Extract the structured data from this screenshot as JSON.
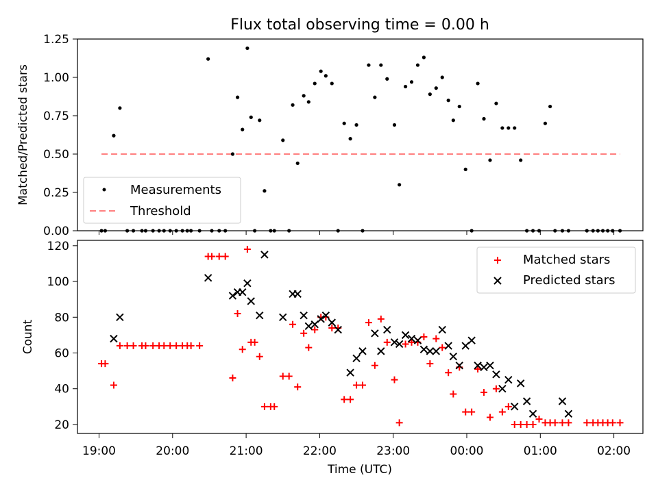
{
  "title": "Flux total observing time = 0.00 h",
  "chart_data": [
    {
      "type": "scatter",
      "ylabel": "Matched/Predicted stars",
      "xlabel": "",
      "ylim": [
        0,
        1.25
      ],
      "yticks": [
        "0.00",
        "0.25",
        "0.50",
        "0.75",
        "1.00",
        "1.25"
      ],
      "grid": false,
      "legend_position": "lower-left",
      "series": [
        {
          "name": "Measurements",
          "marker": "dot",
          "color": "#000000",
          "x": [
            "19:02",
            "19:05",
            "19:12",
            "19:17",
            "19:23",
            "19:28",
            "19:35",
            "19:38",
            "19:44",
            "19:49",
            "19:53",
            "19:58",
            "20:03",
            "20:08",
            "20:12",
            "20:15",
            "20:22",
            "20:29",
            "20:32",
            "20:38",
            "20:43",
            "20:49",
            "20:53",
            "20:57",
            "21:01",
            "21:04",
            "21:07",
            "21:11",
            "21:15",
            "21:20",
            "21:23",
            "21:30",
            "21:35",
            "21:38",
            "21:42",
            "21:47",
            "21:51",
            "21:56",
            "22:01",
            "22:05",
            "22:10",
            "22:15",
            "22:20",
            "22:25",
            "22:30",
            "22:35",
            "22:40",
            "22:45",
            "22:50",
            "22:55",
            "23:01",
            "23:05",
            "23:10",
            "23:15",
            "23:20",
            "23:25",
            "23:30",
            "23:35",
            "23:40",
            "23:45",
            "23:49",
            "23:54",
            "23:59",
            "00:04",
            "00:09",
            "00:14",
            "00:19",
            "00:24",
            "00:29",
            "00:34",
            "00:39",
            "00:44",
            "00:49",
            "00:54",
            "00:59",
            "01:04",
            "01:08",
            "01:12",
            "01:18",
            "01:23",
            "01:38",
            "01:43",
            "01:47",
            "01:51",
            "01:55",
            "01:59",
            "02:05"
          ],
          "y": [
            0,
            0,
            0.62,
            0.8,
            0,
            0,
            0,
            0,
            0,
            0,
            0,
            0,
            0,
            0,
            0,
            0,
            0,
            1.12,
            0,
            0,
            0,
            0.5,
            0.87,
            0.66,
            1.19,
            0.74,
            0,
            0.72,
            0.26,
            0,
            0,
            0.59,
            0,
            0.82,
            0.44,
            0.88,
            0.84,
            0.96,
            1.04,
            1.01,
            0.96,
            0,
            0.7,
            0.6,
            0.69,
            0,
            1.08,
            0.87,
            1.08,
            0.99,
            0.69,
            0.3,
            0.94,
            0.97,
            1.08,
            1.13,
            0.89,
            0.93,
            1.0,
            0.85,
            0.72,
            0.81,
            0.4,
            0,
            0.96,
            0.73,
            0.46,
            0.83,
            0.67,
            0.67,
            0.67,
            0.46,
            0,
            0,
            0,
            0.7,
            0.81,
            0,
            0,
            0,
            0,
            0,
            0,
            0,
            0,
            0,
            0
          ]
        },
        {
          "name": "Threshold",
          "style": "dashed",
          "color": "#ff7f7f",
          "x": [
            "19:02",
            "02:05"
          ],
          "y": [
            0.5,
            0.5
          ]
        }
      ]
    },
    {
      "type": "scatter",
      "ylabel": "Count",
      "xlabel": "Time (UTC)",
      "ylim": [
        15,
        123
      ],
      "yticks": [
        "20",
        "40",
        "60",
        "80",
        "100",
        "120"
      ],
      "xticks": [
        "19:00",
        "20:00",
        "21:00",
        "22:00",
        "23:00",
        "00:00",
        "01:00",
        "02:00"
      ],
      "xlim": [
        "18:58",
        "02:24"
      ],
      "grid": false,
      "legend_position": "upper-right",
      "series": [
        {
          "name": "Matched stars",
          "marker": "plus",
          "color": "#ff0000",
          "x": [
            "19:02",
            "19:05",
            "19:12",
            "19:17",
            "19:23",
            "19:28",
            "19:35",
            "19:38",
            "19:44",
            "19:49",
            "19:53",
            "19:58",
            "20:03",
            "20:08",
            "20:12",
            "20:15",
            "20:22",
            "20:29",
            "20:32",
            "20:38",
            "20:43",
            "20:49",
            "20:53",
            "20:57",
            "21:01",
            "21:04",
            "21:07",
            "21:11",
            "21:15",
            "21:20",
            "21:23",
            "21:30",
            "21:35",
            "21:38",
            "21:42",
            "21:47",
            "21:51",
            "21:56",
            "22:01",
            "22:05",
            "22:10",
            "22:15",
            "22:20",
            "22:25",
            "22:30",
            "22:35",
            "22:40",
            "22:45",
            "22:50",
            "22:55",
            "23:01",
            "23:05",
            "23:10",
            "23:15",
            "23:20",
            "23:25",
            "23:30",
            "23:35",
            "23:40",
            "23:45",
            "23:49",
            "23:54",
            "23:59",
            "00:04",
            "00:09",
            "00:14",
            "00:19",
            "00:24",
            "00:29",
            "00:34",
            "00:39",
            "00:44",
            "00:49",
            "00:54",
            "00:59",
            "01:04",
            "01:08",
            "01:12",
            "01:18",
            "01:23",
            "01:38",
            "01:43",
            "01:47",
            "01:51",
            "01:55",
            "01:59",
            "02:05"
          ],
          "y": [
            54,
            54,
            42,
            64,
            64,
            64,
            64,
            64,
            64,
            64,
            64,
            64,
            64,
            64,
            64,
            64,
            64,
            114,
            114,
            114,
            114,
            46,
            82,
            62,
            118,
            66,
            66,
            58,
            30,
            30,
            30,
            47,
            47,
            76,
            41,
            71,
            63,
            73,
            80,
            80,
            74,
            74,
            34,
            34,
            42,
            42,
            77,
            53,
            79,
            66,
            45,
            21,
            65,
            66,
            66,
            69,
            54,
            68,
            63,
            49,
            37,
            52,
            27,
            27,
            51,
            38,
            24,
            40,
            27,
            30,
            20,
            20,
            20,
            20,
            23,
            21,
            21,
            21,
            21,
            21,
            21,
            21,
            21,
            21,
            21,
            21,
            21
          ]
        },
        {
          "name": "Predicted stars",
          "marker": "x",
          "color": "#000000",
          "x": [
            "19:12",
            "19:17",
            "20:29",
            "20:49",
            "20:53",
            "20:57",
            "21:01",
            "21:04",
            "21:11",
            "21:15",
            "21:30",
            "21:38",
            "21:42",
            "21:47",
            "21:51",
            "21:56",
            "22:01",
            "22:05",
            "22:10",
            "22:15",
            "22:25",
            "22:30",
            "22:35",
            "22:45",
            "22:50",
            "22:55",
            "23:01",
            "23:05",
            "23:10",
            "23:15",
            "23:20",
            "23:25",
            "23:30",
            "23:35",
            "23:40",
            "23:45",
            "23:49",
            "23:54",
            "23:59",
            "00:04",
            "00:09",
            "00:14",
            "00:19",
            "00:24",
            "00:29",
            "00:34",
            "00:39",
            "00:44",
            "00:49",
            "00:54",
            "01:18",
            "01:23"
          ],
          "y": [
            68,
            80,
            102,
            92,
            94,
            94,
            99,
            89,
            81,
            115,
            80,
            93,
            93,
            81,
            75,
            76,
            79,
            81,
            77,
            73,
            49,
            57,
            61,
            71,
            61,
            73,
            66,
            65,
            70,
            68,
            67,
            62,
            61,
            61,
            73,
            64,
            58,
            53,
            64,
            67,
            53,
            52,
            53,
            48,
            40,
            45,
            30,
            43,
            33,
            26,
            33,
            26
          ]
        }
      ]
    }
  ]
}
